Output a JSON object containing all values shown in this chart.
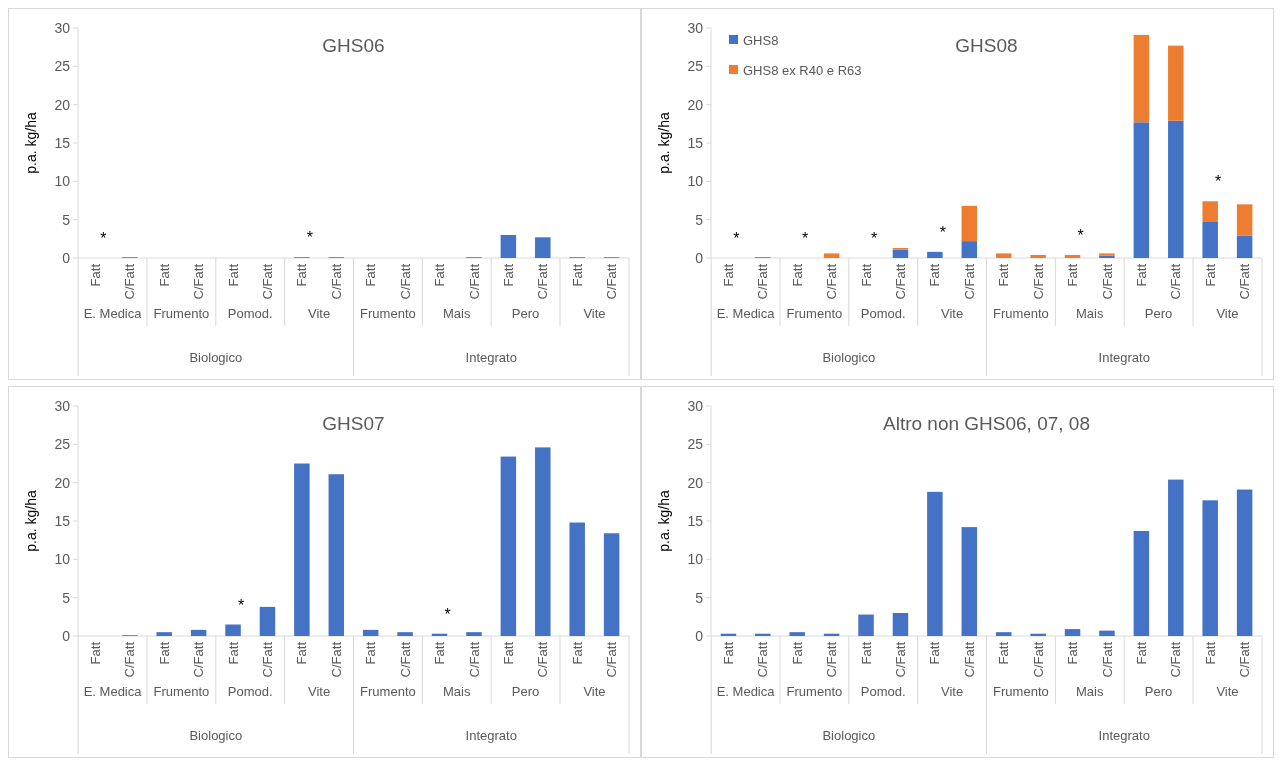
{
  "chart_data": [
    {
      "type": "bar",
      "title": "GHS06",
      "ylabel": "p.a. kg/ha",
      "categories": [
        "Fatt",
        "C/Fatt",
        "Fatt",
        "C/Fatt",
        "Fatt",
        "C/Fatt",
        "Fatt",
        "C/Fatt",
        "Fatt",
        "C/Fatt",
        "Fatt",
        "C/Fatt",
        "Fatt",
        "C/Fatt",
        "Fatt",
        "C/Fatt"
      ],
      "series": [
        {
          "color": "#4472c4",
          "values": [
            0,
            0.1,
            0,
            0,
            0,
            0,
            0.1,
            0.1,
            0,
            0,
            0,
            0.1,
            3.0,
            2.7,
            0.1,
            0.1
          ],
          "value_labels": [
            "*",
            null,
            null,
            null,
            null,
            null,
            "*",
            null,
            null,
            null,
            null,
            null,
            null,
            null,
            null,
            null
          ]
        }
      ],
      "ylim": [
        0,
        30
      ],
      "yticks": [
        0,
        5,
        10,
        15,
        20,
        25,
        30
      ],
      "annotations": [
        "E. Medica",
        "Frumento",
        "Pomod.",
        "Vite",
        "Frumento",
        "Mais",
        "Pero",
        "Vite",
        "Biologico",
        "Integrato"
      ]
    },
    {
      "type": "bar",
      "title": "GHS08",
      "ylabel": "p.a. kg/ha",
      "stacked": true,
      "legend": "top left",
      "categories": [
        "Fatt",
        "C/Fatt",
        "Fatt",
        "C/Fatt",
        "Fatt",
        "C/Fatt",
        "Fatt",
        "C/Fatt",
        "Fatt",
        "C/Fatt",
        "Fatt",
        "C/Fatt",
        "Fatt",
        "C/Fatt",
        "Fatt",
        "C/Fatt"
      ],
      "series": [
        {
          "name": "GHS8",
          "color": "#4472c4",
          "values": [
            0,
            0.1,
            0,
            0,
            0,
            1.1,
            0.8,
            2.2,
            0,
            0,
            0,
            0.3,
            17.7,
            17.9,
            4.7,
            2.9
          ],
          "value_labels": [
            "*",
            null,
            "*",
            null,
            "*",
            null,
            "*",
            null,
            null,
            null,
            "*",
            null,
            null,
            null,
            "*",
            null
          ]
        },
        {
          "name": "GHS8 ex R40 e R63",
          "color": "#ed7d31",
          "values": [
            0,
            0,
            0,
            0.6,
            0,
            0.2,
            0,
            4.6,
            0.6,
            0.4,
            0.4,
            0.3,
            11.4,
            9.8,
            2.7,
            4.1
          ]
        }
      ],
      "ylim": [
        0,
        30
      ],
      "yticks": [
        0,
        5,
        10,
        15,
        20,
        25,
        30
      ],
      "annotations": [
        "E. Medica",
        "Frumento",
        "Pomod.",
        "Vite",
        "Frumento",
        "Mais",
        "Pero",
        "Vite",
        "Biologico",
        "Integrato"
      ]
    },
    {
      "type": "bar",
      "title": "GHS07",
      "ylabel": "p.a. kg/ha",
      "categories": [
        "Fatt",
        "C/Fatt",
        "Fatt",
        "C/Fatt",
        "Fatt",
        "C/Fatt",
        "Fatt",
        "C/Fatt",
        "Fatt",
        "C/Fatt",
        "Fatt",
        "C/Fatt",
        "Fatt",
        "C/Fatt",
        "Fatt",
        "C/Fatt"
      ],
      "series": [
        {
          "color": "#4472c4",
          "values": [
            0,
            0.1,
            0.5,
            0.8,
            1.5,
            3.8,
            22.5,
            21.1,
            0.8,
            0.5,
            0.3,
            0.5,
            23.4,
            24.6,
            14.8,
            13.4
          ],
          "value_labels": [
            null,
            null,
            null,
            null,
            "*",
            null,
            null,
            null,
            null,
            null,
            "*",
            null,
            null,
            null,
            null,
            null
          ]
        }
      ],
      "ylim": [
        0,
        30
      ],
      "yticks": [
        0,
        5,
        10,
        15,
        20,
        25,
        30
      ],
      "annotations": [
        "E. Medica",
        "Frumento",
        "Pomod.",
        "Vite",
        "Frumento",
        "Mais",
        "Pero",
        "Vite",
        "Biologico",
        "Integrato"
      ]
    },
    {
      "type": "bar",
      "title": "Altro non GHS06, 07, 08",
      "ylabel": "p.a. kg/ha",
      "categories": [
        "Fatt",
        "C/Fatt",
        "Fatt",
        "C/Fatt",
        "Fatt",
        "C/Fatt",
        "Fatt",
        "C/Fatt",
        "Fatt",
        "C/Fatt",
        "Fatt",
        "C/Fatt",
        "Fatt",
        "C/Fatt",
        "Fatt",
        "C/Fatt"
      ],
      "series": [
        {
          "color": "#4472c4",
          "values": [
            0.3,
            0.3,
            0.5,
            0.3,
            2.8,
            3.0,
            18.8,
            14.2,
            0.5,
            0.3,
            0.9,
            0.7,
            13.7,
            20.4,
            17.7,
            19.1
          ]
        }
      ],
      "ylim": [
        0,
        30
      ],
      "yticks": [
        0,
        5,
        10,
        15,
        20,
        25,
        30
      ],
      "annotations": [
        "E. Medica",
        "Frumento",
        "Pomod.",
        "Vite",
        "Frumento",
        "Mais",
        "Pero",
        "Vite",
        "Biologico",
        "Integrato"
      ]
    }
  ]
}
